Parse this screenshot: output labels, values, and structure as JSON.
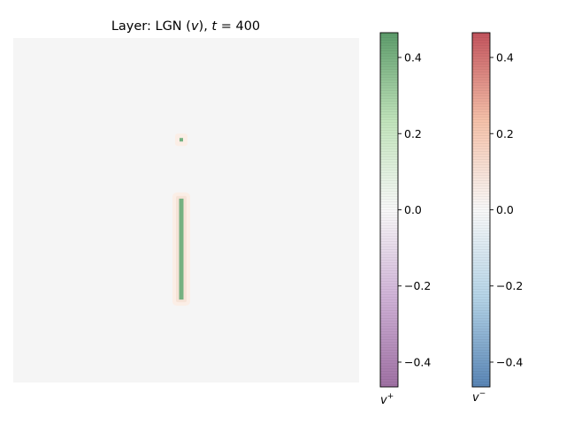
{
  "chart_data": {
    "type": "heatmap",
    "title_prefix": "Layer: LGN (",
    "title_var": "v",
    "title_mid": "), ",
    "title_t": "t",
    "title_eq": " = 400",
    "axes_visible": false,
    "grid": false,
    "background_value_color": "#f5f5f5",
    "features": [
      {
        "name": "dot",
        "shape": "point",
        "col": 0,
        "row": -13,
        "value": 0.3,
        "halo_value": -0.03
      },
      {
        "name": "bar",
        "shape": "vertical-line",
        "col": 0,
        "row_from": -6,
        "row_to": 6,
        "value": 0.3,
        "halo_value": -0.04
      }
    ],
    "colorbars": [
      {
        "name": "v-plus",
        "label_base": "v",
        "label_sup": "+",
        "cmap": "PRGn",
        "range": [
          -0.465,
          0.465
        ],
        "ticks": [
          -0.4,
          -0.2,
          0.0,
          0.2,
          0.4
        ],
        "tick_labels": [
          "−0.4",
          "−0.2",
          "0.0",
          "0.2",
          "0.4"
        ],
        "colors": {
          "low": "#7b3b86",
          "mid": "#f7f7f7",
          "high": "#1b7837"
        }
      },
      {
        "name": "v-minus",
        "label_base": "v",
        "label_sup": "−",
        "cmap": "RdBu_r",
        "range": [
          -0.465,
          0.465
        ],
        "ticks": [
          -0.4,
          -0.2,
          0.0,
          0.2,
          0.4
        ],
        "tick_labels": [
          "−0.4",
          "−0.2",
          "0.0",
          "0.2",
          "0.4"
        ],
        "colors": {
          "low": "#2166ac",
          "mid": "#f7f7f7",
          "high": "#b2182b"
        }
      }
    ]
  }
}
